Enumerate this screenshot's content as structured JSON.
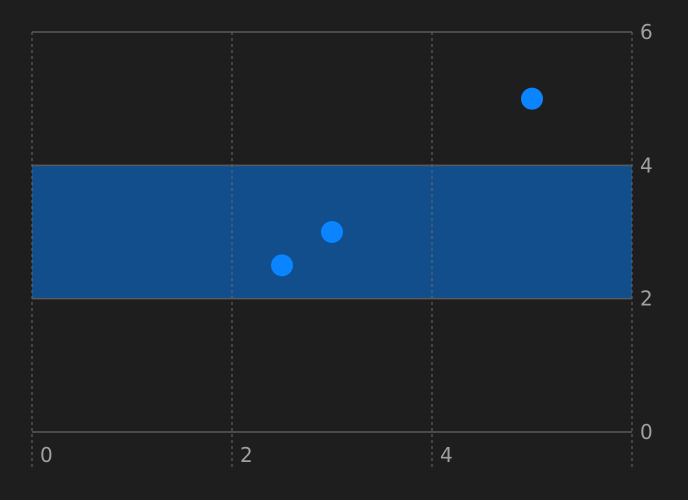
{
  "chart_data": {
    "type": "scatter",
    "title": "",
    "xlabel": "",
    "ylabel": "",
    "xlim": [
      0,
      6
    ],
    "ylim": [
      0,
      6
    ],
    "x_ticks": [
      "0",
      "2",
      "4"
    ],
    "y_ticks": [
      "0",
      "2",
      "4",
      "6"
    ],
    "grid": true,
    "y_axis_side": "right",
    "band": {
      "y_start": 2,
      "y_end": 4,
      "color": "#124e8c"
    },
    "series": [
      {
        "color": "#0a84ff",
        "points": [
          {
            "x": 2.5,
            "y": 2.5
          },
          {
            "x": 3,
            "y": 3
          },
          {
            "x": 5,
            "y": 5
          }
        ]
      }
    ]
  }
}
